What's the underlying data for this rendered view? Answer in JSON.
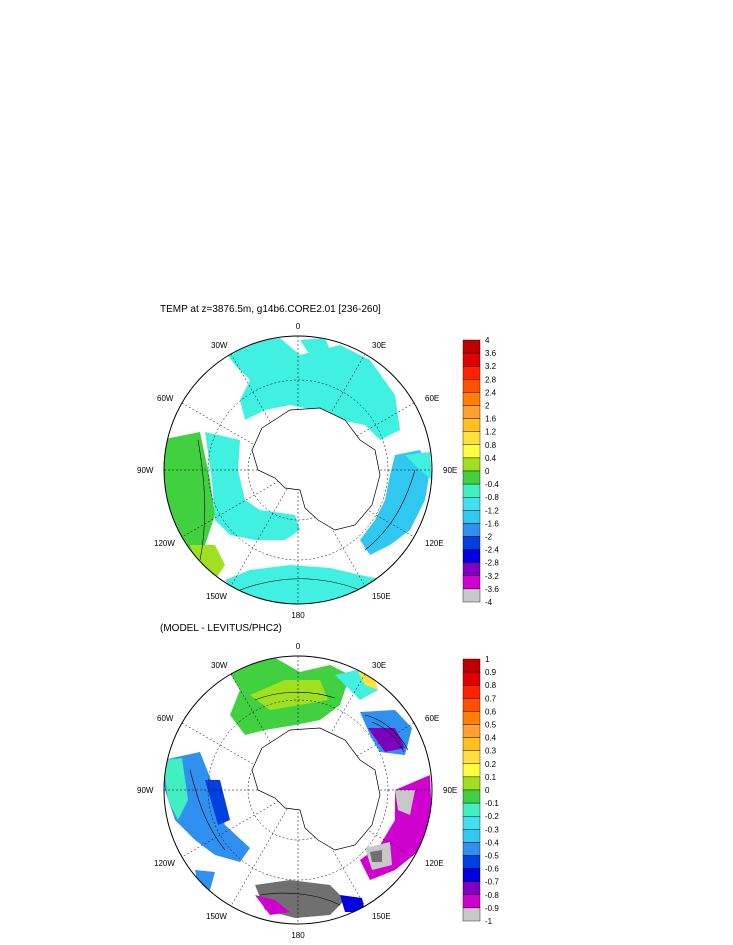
{
  "panels": [
    {
      "title": "TEMP at z=3876.5m, g14b6.CORE2.01 [236-260]",
      "lon_labels": [
        "0",
        "30E",
        "60E",
        "90E",
        "120E",
        "150E",
        "180",
        "150W",
        "120W",
        "90W",
        "60W",
        "30W"
      ],
      "colorbar": {
        "labels": [
          "4",
          "3.6",
          "3.2",
          "2.8",
          "2.4",
          "2",
          "1.6",
          "1.2",
          "0.8",
          "0.4",
          "0",
          "-0.4",
          "-0.8",
          "-1.2",
          "-1.6",
          "-2",
          "-2.4",
          "-2.8",
          "-3.2",
          "-3.6",
          "-4"
        ]
      }
    },
    {
      "title": "(MODEL - LEVITUS/PHC2)",
      "lon_labels": [
        "0",
        "30E",
        "60E",
        "90E",
        "120E",
        "150E",
        "180",
        "150W",
        "120W",
        "90W",
        "60W",
        "30W"
      ],
      "colorbar": {
        "labels": [
          "1",
          "0.9",
          "0.8",
          "0.7",
          "0.6",
          "0.5",
          "0.4",
          "0.3",
          "0.2",
          "0.1",
          "0",
          "-0.1",
          "-0.2",
          "-0.3",
          "-0.4",
          "-0.5",
          "-0.6",
          "-0.7",
          "-0.8",
          "-0.9",
          "-1"
        ]
      }
    }
  ],
  "colorbar_colors": [
    "#c00000",
    "#e00000",
    "#ff2000",
    "#ff5000",
    "#ff8000",
    "#ffa030",
    "#ffc020",
    "#ffe040",
    "#ffff40",
    "#a0e020",
    "#40d040",
    "#40f0c0",
    "#40e0f0",
    "#30c8f0",
    "#3090f0",
    "#0040e0",
    "#0000e0",
    "#8000c0",
    "#d000d0",
    "#c8c8c8",
    "#707070"
  ]
}
